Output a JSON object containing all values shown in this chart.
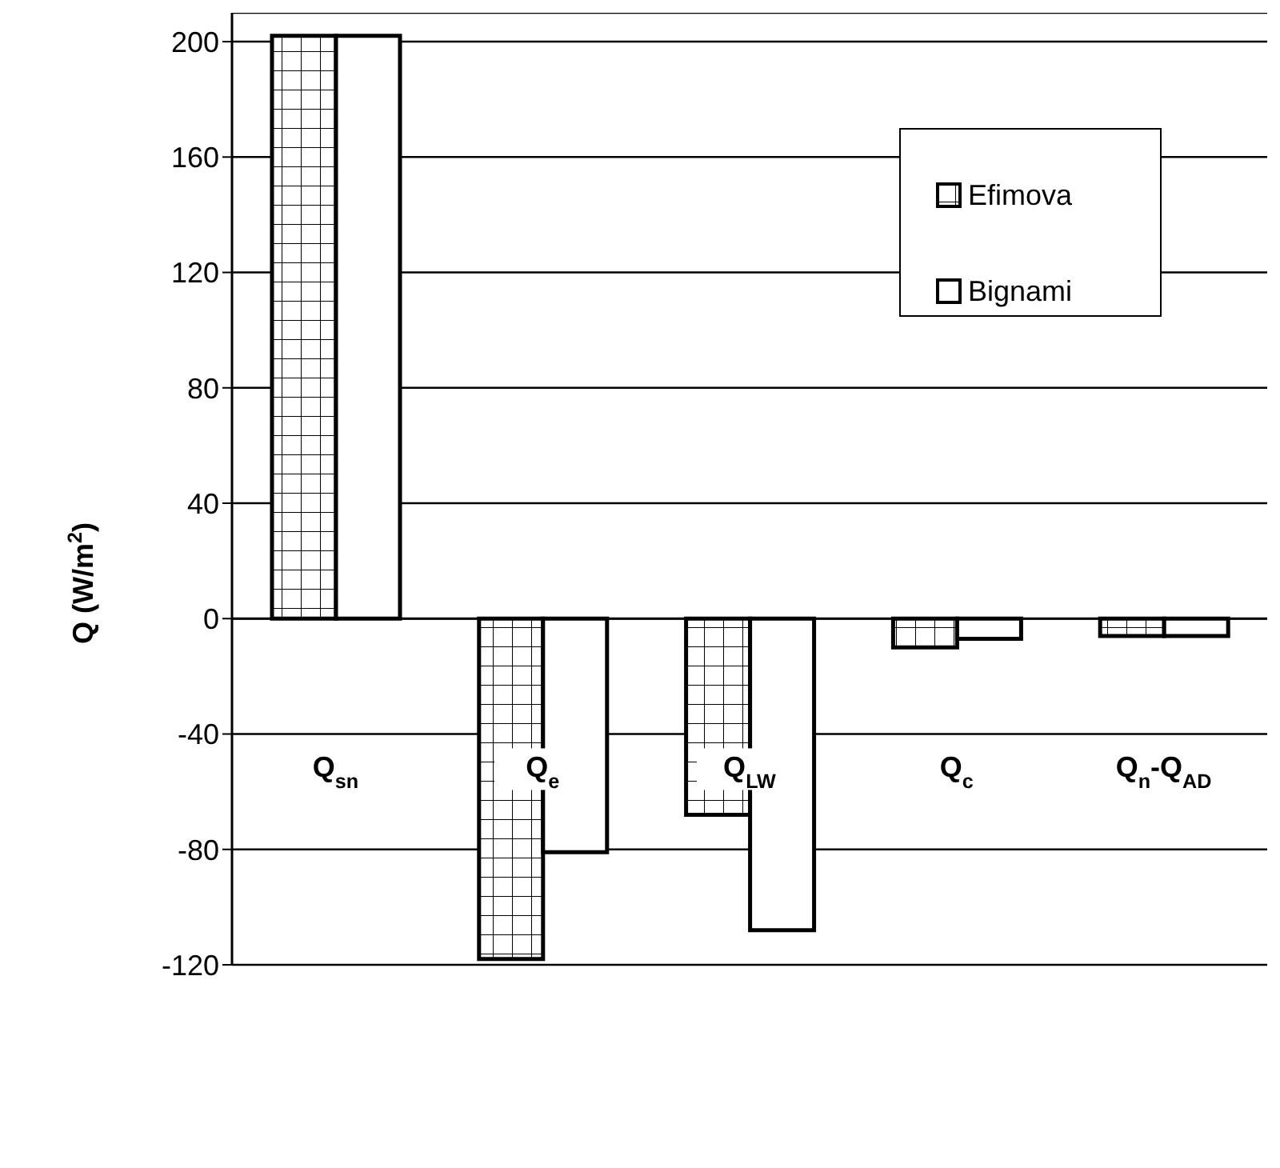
{
  "chart_data": {
    "type": "bar",
    "ylabel": "Q (W/m$^{2}$)",
    "categories": [
      "Q$_{sn}$",
      "Q$_{e}$",
      "Q$_{LW}$",
      "Q$_{c}$",
      "Q$_{n}$-Q$_{AD}$"
    ],
    "series": [
      {
        "name": "Efimova",
        "color": "#000000",
        "values": [
          202,
          -118,
          -68,
          -10,
          -6
        ]
      },
      {
        "name": "Bignami",
        "color": "#000000",
        "values": [
          202,
          -81,
          -108,
          -7,
          -6
        ]
      }
    ],
    "ylim": [
      -120,
      210
    ],
    "yticks": [
      -120,
      -80,
      -40,
      0,
      40,
      80,
      120,
      160,
      200
    ],
    "grid": "y",
    "legend": "top right"
  }
}
